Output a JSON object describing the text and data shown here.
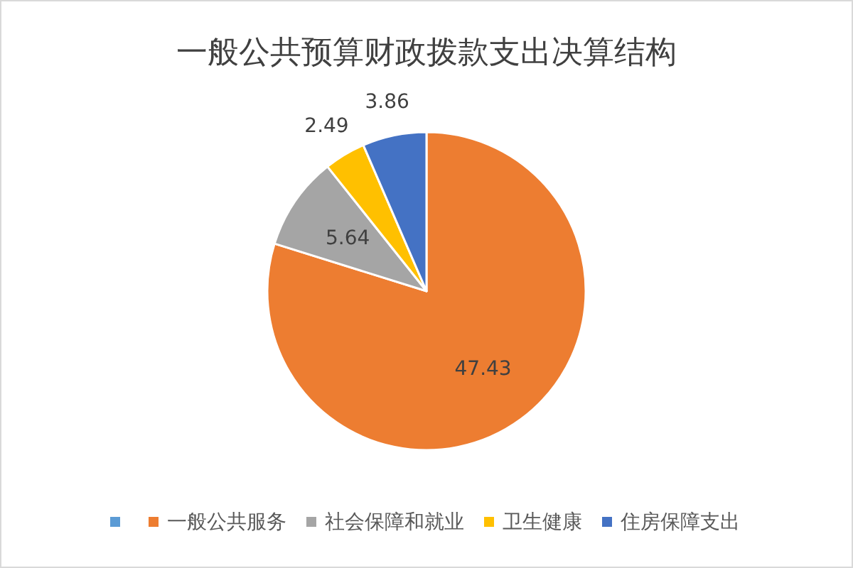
{
  "chart_data": {
    "type": "pie",
    "title": "一般公共预算财政拨款支出决算结构",
    "categories": [
      null,
      "一般公共服务",
      "社会保障和就业",
      "卫生健康",
      "住房保障支出"
    ],
    "values": [
      null,
      47.43,
      5.64,
      2.49,
      3.86
    ],
    "colors": [
      "#5b9bd5",
      "#ed7d31",
      "#a5a5a5",
      "#ffc000",
      "#4472c4"
    ],
    "data_labels": true,
    "legend": "bottom"
  }
}
